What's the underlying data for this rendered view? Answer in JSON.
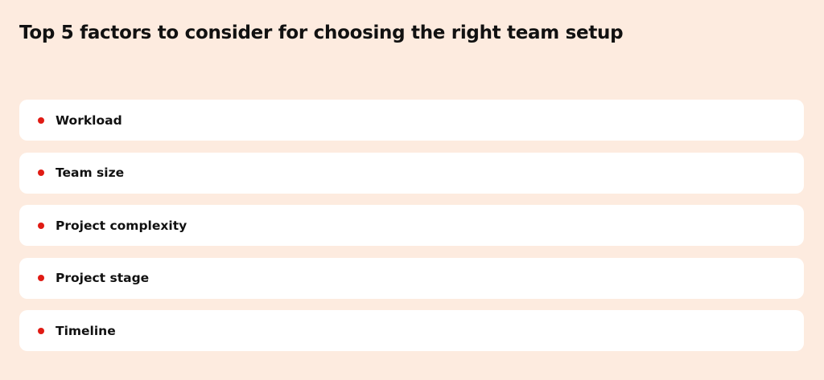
{
  "title": "Top 5 factors to consider for choosing the right team setup",
  "accent_color": "#e01b14",
  "items": [
    {
      "label": "Workload"
    },
    {
      "label": "Team size"
    },
    {
      "label": "Project complexity"
    },
    {
      "label": "Project stage"
    },
    {
      "label": "Timeline"
    }
  ]
}
